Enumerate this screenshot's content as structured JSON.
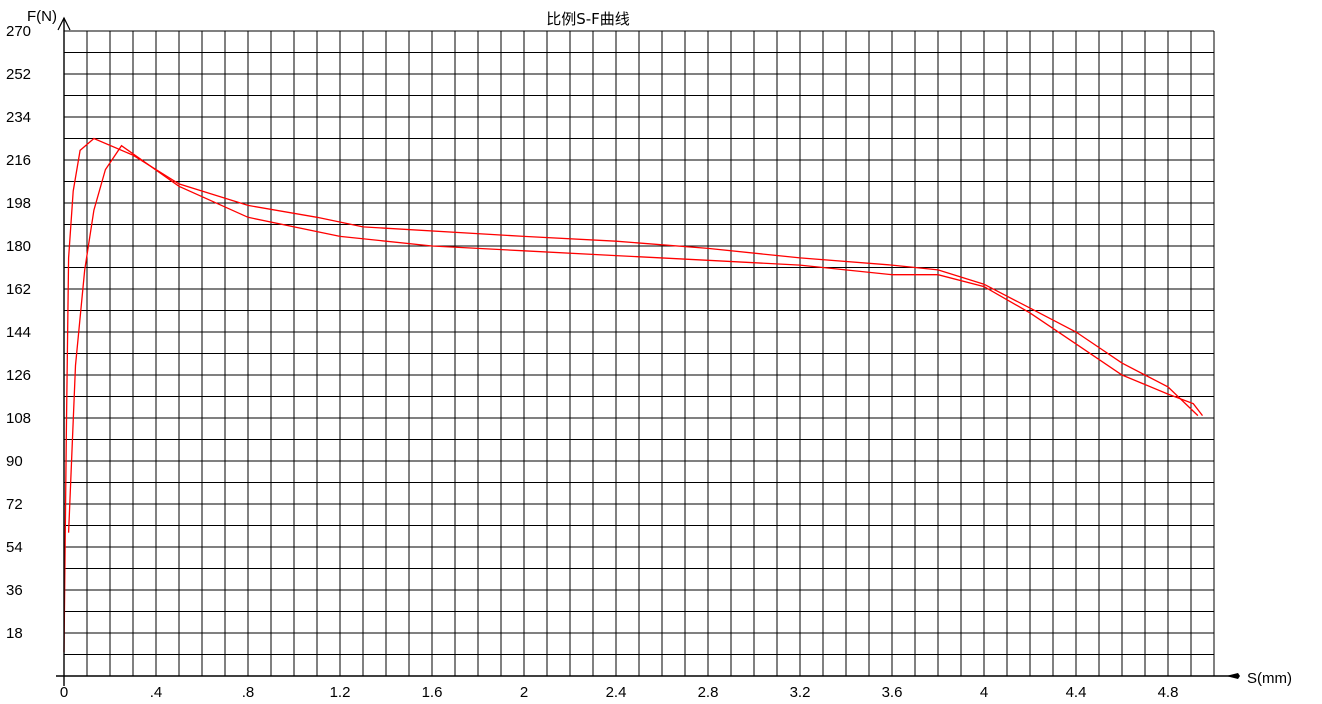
{
  "chart_data": {
    "type": "line",
    "title": "比例S-F曲线",
    "xlabel": "S(mm)",
    "ylabel": "F(N)",
    "xlim": [
      0,
      5
    ],
    "ylim": [
      0,
      270
    ],
    "grid": true,
    "x_ticks": [
      0,
      0.4,
      0.8,
      1.2,
      1.6,
      2,
      2.4,
      2.8,
      3.2,
      3.6,
      4,
      4.4,
      4.8
    ],
    "x_tick_labels": [
      "0",
      ".4",
      ".8",
      "1.2",
      "1.6",
      "2",
      "2.4",
      "2.8",
      "3.2",
      "3.6",
      "4",
      "4.4",
      "4.8"
    ],
    "y_ticks": [
      18,
      36,
      54,
      72,
      90,
      108,
      126,
      144,
      162,
      180,
      198,
      216,
      234,
      252,
      270
    ],
    "y_tick_labels": [
      "18",
      "36",
      "54",
      "72",
      "90",
      "108",
      "126",
      "144",
      "162",
      "180",
      "198",
      "216",
      "234",
      "252",
      "270"
    ],
    "series_color": "#ff0000",
    "series": [
      {
        "x": [
          0,
          0.01,
          0.02,
          0.04,
          0.07,
          0.13,
          0.3,
          0.5,
          0.8,
          1.1,
          1.3,
          2.0,
          2.4,
          2.8,
          3.2,
          3.6,
          3.8,
          4.0,
          4.2,
          4.4,
          4.6,
          4.8,
          4.93
        ],
        "y": [
          10,
          100,
          175,
          203,
          220,
          225,
          218,
          206,
          197,
          192,
          188,
          184,
          182,
          179,
          175,
          172,
          170,
          164,
          154,
          144,
          131,
          121,
          109
        ]
      },
      {
        "x": [
          0.02,
          0.05,
          0.09,
          0.13,
          0.18,
          0.25,
          0.5,
          0.8,
          1.2,
          1.6,
          2.0,
          2.4,
          2.8,
          3.2,
          3.6,
          3.8,
          4.0,
          4.2,
          4.4,
          4.6,
          4.8,
          4.91,
          4.95
        ],
        "y": [
          60,
          130,
          170,
          195,
          212,
          222,
          205,
          192,
          184,
          180,
          178,
          176,
          174,
          172,
          168,
          168,
          163,
          152,
          139,
          126,
          118,
          114,
          109
        ]
      }
    ]
  }
}
